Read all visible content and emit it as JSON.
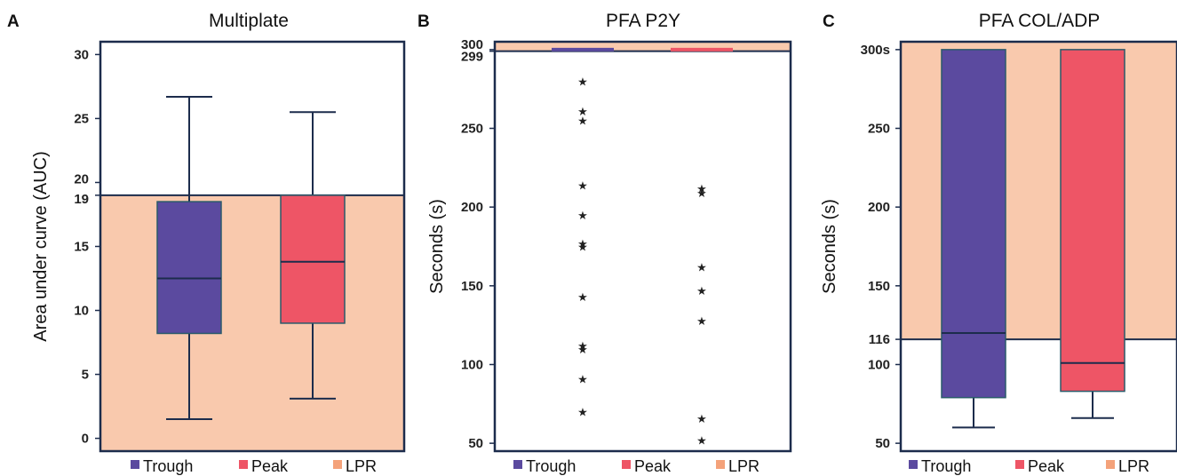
{
  "colors": {
    "trough": "#5b4a9f",
    "peak": "#ee5566",
    "lpr_band": "#f9c9ad",
    "lpr_legend": "#f4a27a",
    "frame": "#1c2c4c"
  },
  "legend": [
    {
      "label": "Trough",
      "color": "#5b4a9f"
    },
    {
      "label": "Peak",
      "color": "#ee5566"
    },
    {
      "label": "LPR",
      "color": "#f4a27a"
    }
  ],
  "chart_data": [
    {
      "letter": "A",
      "type": "box",
      "title": "Multiplate",
      "ylabel": "Area under curve (AUC)",
      "ylim": [
        -1,
        31
      ],
      "yticks": [
        "0",
        "5",
        "10",
        "15",
        "19",
        "20",
        "25",
        "30"
      ],
      "cutoff": 19,
      "lpr_range": [
        -1,
        19
      ],
      "categories": [
        "Trough",
        "Peak"
      ],
      "series": [
        {
          "name": "Trough",
          "whisker_low": 1.5,
          "q1": 8.2,
          "median": 12.5,
          "q3": 18.5,
          "whisker_high": 26.7
        },
        {
          "name": "Peak",
          "whisker_low": 3.1,
          "q1": 9.0,
          "median": 13.8,
          "q3": 19.0,
          "whisker_high": 25.5
        }
      ]
    },
    {
      "letter": "B",
      "type": "scatter",
      "title": "PFA P2Y",
      "ylabel": "Seconds (s)",
      "ylim": [
        45,
        305
      ],
      "yticks": [
        "50",
        "100",
        "150",
        "200",
        "250",
        "299",
        "300"
      ],
      "cutoff": 299,
      "lpr_range": [
        299,
        305
      ],
      "categories": [
        "Trough",
        "Peak"
      ],
      "series": [
        {
          "name": "Trough",
          "level": 300,
          "outliers": [
            280,
            261,
            255,
            214,
            195,
            177,
            175,
            143,
            112,
            110,
            91,
            70
          ]
        },
        {
          "name": "Peak",
          "level": 300,
          "outliers": [
            212,
            209,
            162,
            147,
            128,
            66,
            52
          ]
        }
      ]
    },
    {
      "letter": "C",
      "type": "box",
      "title": "PFA COL/ADP",
      "ylabel": "Seconds (s)",
      "ylim": [
        45,
        305
      ],
      "yticks": [
        "50",
        "100",
        "116",
        "150",
        "200",
        "250",
        "300s"
      ],
      "cutoff": 116,
      "lpr_range": [
        116,
        305
      ],
      "categories": [
        "Trough",
        "Peak"
      ],
      "series": [
        {
          "name": "Trough",
          "whisker_low": 60,
          "q1": 79,
          "median": 120,
          "q3": 300,
          "whisker_high": 300
        },
        {
          "name": "Peak",
          "whisker_low": 66,
          "q1": 83,
          "median": 101,
          "q3": 300,
          "whisker_high": 300
        }
      ]
    }
  ]
}
